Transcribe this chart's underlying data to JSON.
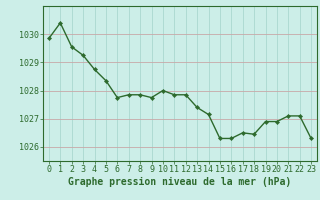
{
  "x": [
    0,
    1,
    2,
    3,
    4,
    5,
    6,
    7,
    8,
    9,
    10,
    11,
    12,
    13,
    14,
    15,
    16,
    17,
    18,
    19,
    20,
    21,
    22,
    23
  ],
  "y": [
    1029.85,
    1030.4,
    1029.55,
    1029.25,
    1028.75,
    1028.35,
    1027.75,
    1027.85,
    1027.85,
    1027.75,
    1028.0,
    1027.85,
    1027.85,
    1027.4,
    1027.15,
    1026.3,
    1026.3,
    1026.5,
    1026.45,
    1026.9,
    1026.9,
    1027.1,
    1027.1,
    1026.3
  ],
  "line_color": "#2d6a2d",
  "marker": "D",
  "marker_size": 2.2,
  "line_width": 1.0,
  "bg_color": "#cceee8",
  "grid_color_x": "#aad8d0",
  "grid_color_y": "#c8a8a8",
  "xlabel": "Graphe pression niveau de la mer (hPa)",
  "xlabel_color": "#2d6a2d",
  "xlabel_fontsize": 7.0,
  "tick_label_color": "#2d6a2d",
  "tick_fontsize": 6.0,
  "ytick_labels": [
    "1026",
    "1027",
    "1028",
    "1029",
    "1030"
  ],
  "ylim": [
    1025.5,
    1031.0
  ],
  "xlim": [
    -0.5,
    23.5
  ]
}
